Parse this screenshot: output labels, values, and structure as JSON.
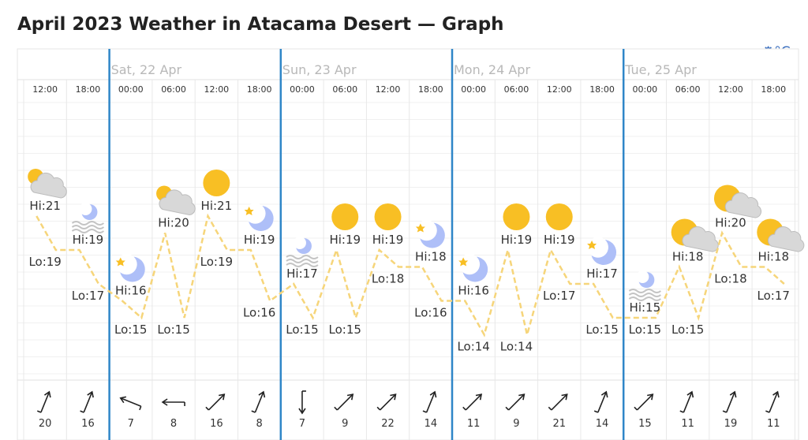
{
  "title": "April 2023 Weather in Atacama Desert — Graph",
  "unit_label": "°C",
  "colors": {
    "accent": "#2f86c8",
    "temp_line": "#f6d57a",
    "sun": "#f8bf24",
    "moon": "#aebff8",
    "cloud": "#d8d8d8"
  },
  "chart_data": {
    "type": "line",
    "days": [
      {
        "label": "Sat, 22 Apr",
        "start_col": 2
      },
      {
        "label": "Sun, 23 Apr",
        "start_col": 6
      },
      {
        "label": "Mon, 24 Apr",
        "start_col": 10
      },
      {
        "label": "Tue, 25 Apr",
        "start_col": 14
      }
    ],
    "times": [
      "12:00",
      "18:00",
      "00:00",
      "06:00",
      "12:00",
      "18:00",
      "00:00",
      "06:00",
      "12:00",
      "18:00",
      "00:00",
      "06:00",
      "12:00",
      "18:00",
      "00:00",
      "06:00",
      "12:00",
      "18:00"
    ],
    "hi": [
      21,
      19,
      16,
      20,
      21,
      19,
      17,
      19,
      19,
      18,
      16,
      19,
      19,
      17,
      15,
      18,
      20,
      18
    ],
    "lo": [
      19,
      17,
      15,
      15,
      19,
      16,
      15,
      15,
      18,
      16,
      14,
      14,
      17,
      15,
      15,
      15,
      18,
      17
    ],
    "icons": [
      "cloudy-day",
      "mist-night",
      "clear-night",
      "cloudy-day",
      "sun",
      "clear-night",
      "mist-night",
      "sun",
      "sun",
      "clear-night",
      "clear-night",
      "sun",
      "sun",
      "clear-night",
      "mist-night",
      "partly-cloudy",
      "partly-cloudy",
      "partly-cloudy"
    ],
    "wind_speed": [
      20,
      16,
      7,
      8,
      16,
      8,
      7,
      9,
      22,
      14,
      11,
      9,
      21,
      14,
      15,
      11,
      19,
      11
    ],
    "wind_direction": [
      "SSW",
      "SSW",
      "ESE",
      "E",
      "SW",
      "SSW",
      "N",
      "SW",
      "SW",
      "SSW",
      "SW",
      "SW",
      "SW",
      "SSW",
      "SW",
      "SSW",
      "SSW",
      "SSW"
    ]
  }
}
